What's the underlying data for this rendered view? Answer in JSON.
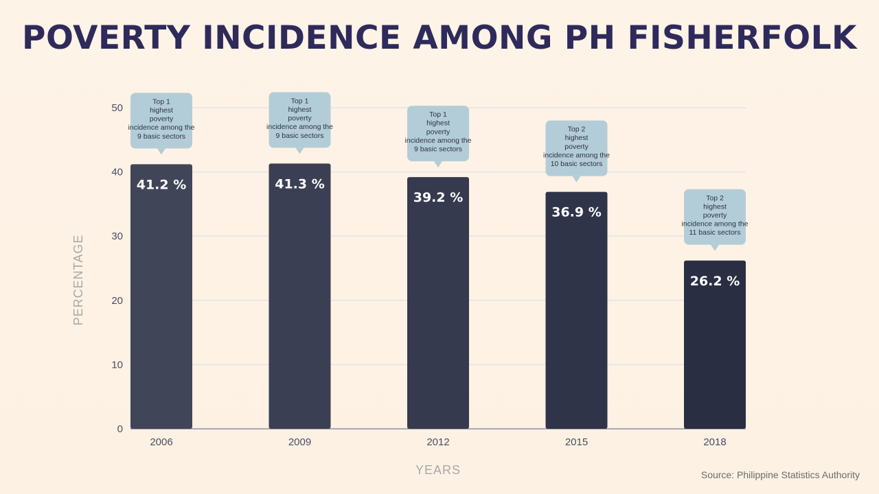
{
  "chart_data": {
    "type": "bar",
    "title": "POVERTY INCIDENCE AMONG PH FISHERFOLK",
    "xlabel": "YEARS",
    "ylabel": "PERCENTAGE",
    "categories": [
      "2006",
      "2009",
      "2012",
      "2015",
      "2018"
    ],
    "values": [
      41.2,
      41.3,
      39.2,
      36.9,
      26.2
    ],
    "value_labels": [
      "41.2 %",
      "41.3 %",
      "39.2 %",
      "36.9 %",
      "26.2 %"
    ],
    "annotations": [
      "Top 1 highest poverty incidence among the 9 basic sectors",
      "Top 1 highest poverty incidence among the 9 basic sectors",
      "Top 1 highest poverty incidence among the 9 basic sectors",
      "Top 2 highest poverty incidence among the 10 basic sectors",
      "Top 2 highest poverty incidence among the 11 basic sectors"
    ],
    "ylim": [
      0,
      50
    ],
    "yticks": [
      0,
      10,
      20,
      30,
      40,
      50
    ],
    "grid": true,
    "legend": "none"
  },
  "source": "Source: Philippine Statistics Authority",
  "colors": {
    "title": "#2e2a5b",
    "bar_start": "#414558",
    "bar_end": "#2a2e43",
    "callout": "#b3cdd8",
    "grid": "#e6e2e4",
    "axis_text": "#4a4e5e",
    "axis_title": "#a8a8a8"
  }
}
